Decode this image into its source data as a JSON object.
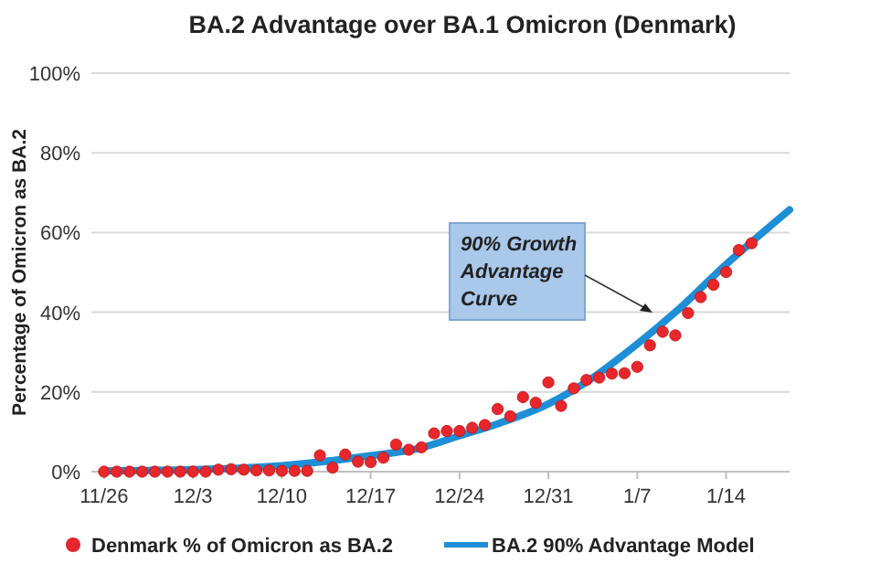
{
  "chart_data": {
    "type": "scatter",
    "title": "BA.2 Advantage over BA.1 Omicron (Denmark)",
    "ylabel": "Percentage of Omicron as BA.2",
    "categories": [
      "11/26",
      null,
      null,
      null,
      null,
      null,
      null,
      "12/3",
      null,
      null,
      null,
      null,
      null,
      null,
      "12/10",
      null,
      null,
      null,
      null,
      null,
      null,
      "12/17",
      null,
      null,
      null,
      null,
      null,
      null,
      "12/24",
      null,
      null,
      null,
      null,
      null,
      null,
      "12/31",
      null,
      null,
      null,
      null,
      null,
      null,
      "1/7",
      null,
      null,
      null,
      null,
      null,
      null,
      "1/14",
      null,
      null,
      null,
      null,
      null
    ],
    "ylim": [
      0,
      100
    ],
    "yticks": [
      {
        "value": 0,
        "label": "0%"
      },
      {
        "value": 20,
        "label": "20%"
      },
      {
        "value": 40,
        "label": "40%"
      },
      {
        "value": 60,
        "label": "60%"
      },
      {
        "value": 80,
        "label": "80%"
      },
      {
        "value": 100,
        "label": "100%"
      }
    ],
    "grid": "y",
    "legend": "bottom",
    "marker": "circle",
    "series": [
      {
        "name": "Denmark % of Omicron as BA.2",
        "color": "#e8262b",
        "values": [
          0,
          0,
          0,
          0,
          0,
          0,
          0,
          0,
          0,
          0.5,
          0.6,
          0.5,
          0.3,
          0.3,
          0.2,
          0.2,
          0.2,
          4.1,
          1,
          4.3,
          2.5,
          2.4,
          3.5,
          6.8,
          5.5,
          6.1,
          9.6,
          10.2,
          10.2,
          11,
          11.7,
          15.7,
          13.9,
          18.7,
          17.3,
          22.4,
          16.5,
          20.9,
          23,
          23.6,
          24.6,
          24.7,
          26.3,
          31.7,
          35.1,
          34.2,
          39.8,
          43.8,
          46.9,
          50.1,
          55.6,
          57.3,
          null,
          null,
          null
        ]
      },
      {
        "name": "BA.2 90% Advantage Model",
        "type": "line",
        "color": "#1e8fd6",
        "marker": "none",
        "values": [
          0.2,
          null,
          null,
          null,
          null,
          null,
          null,
          0.5,
          null,
          null,
          null,
          null,
          null,
          null,
          1.5,
          null,
          null,
          null,
          null,
          null,
          null,
          4,
          null,
          null,
          null,
          6,
          null,
          null,
          9,
          null,
          null,
          12,
          null,
          null,
          null,
          17,
          null,
          null,
          22.5,
          null,
          null,
          null,
          32,
          null,
          null,
          40,
          null,
          null,
          null,
          52,
          null,
          null,
          null,
          null,
          65.7
        ]
      }
    ],
    "annotations": [
      "90% Growth Advantage Curve"
    ]
  }
}
